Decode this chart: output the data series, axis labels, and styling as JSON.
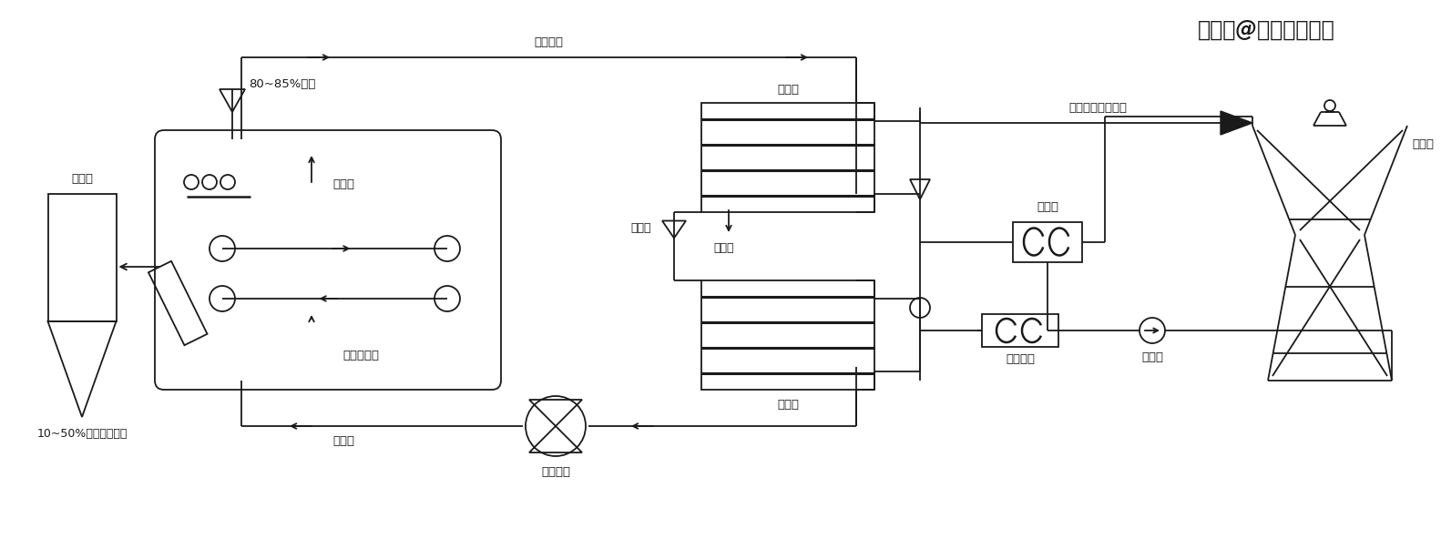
{
  "title": "搜狐号@威凌菲斯科技",
  "bg_color": "#ffffff",
  "line_color": "#1a1a1a",
  "labels": {
    "wet_sludge": "80~85%湿泥",
    "dry_sludge": "10~50%干泥（可调）",
    "dry_bin": "干料仓",
    "molding_machine": "成型机",
    "belt_dryer": "带式干燥器",
    "air_circulation": "空气循环",
    "hot_air": "热空气",
    "circulation_fan": "循环风机",
    "evaporator": "蒸发器",
    "condenser": "冷凝器",
    "condensate_water": "冷凝水",
    "expansion_valve": "膨胀阀",
    "compressor": "压缩机",
    "water_cooled_condenser": "水冷凝器",
    "cooling_pump": "冷却泵",
    "cooling_tower": "冷却塔",
    "condensate_drain": "冷凝水排至污水池"
  }
}
